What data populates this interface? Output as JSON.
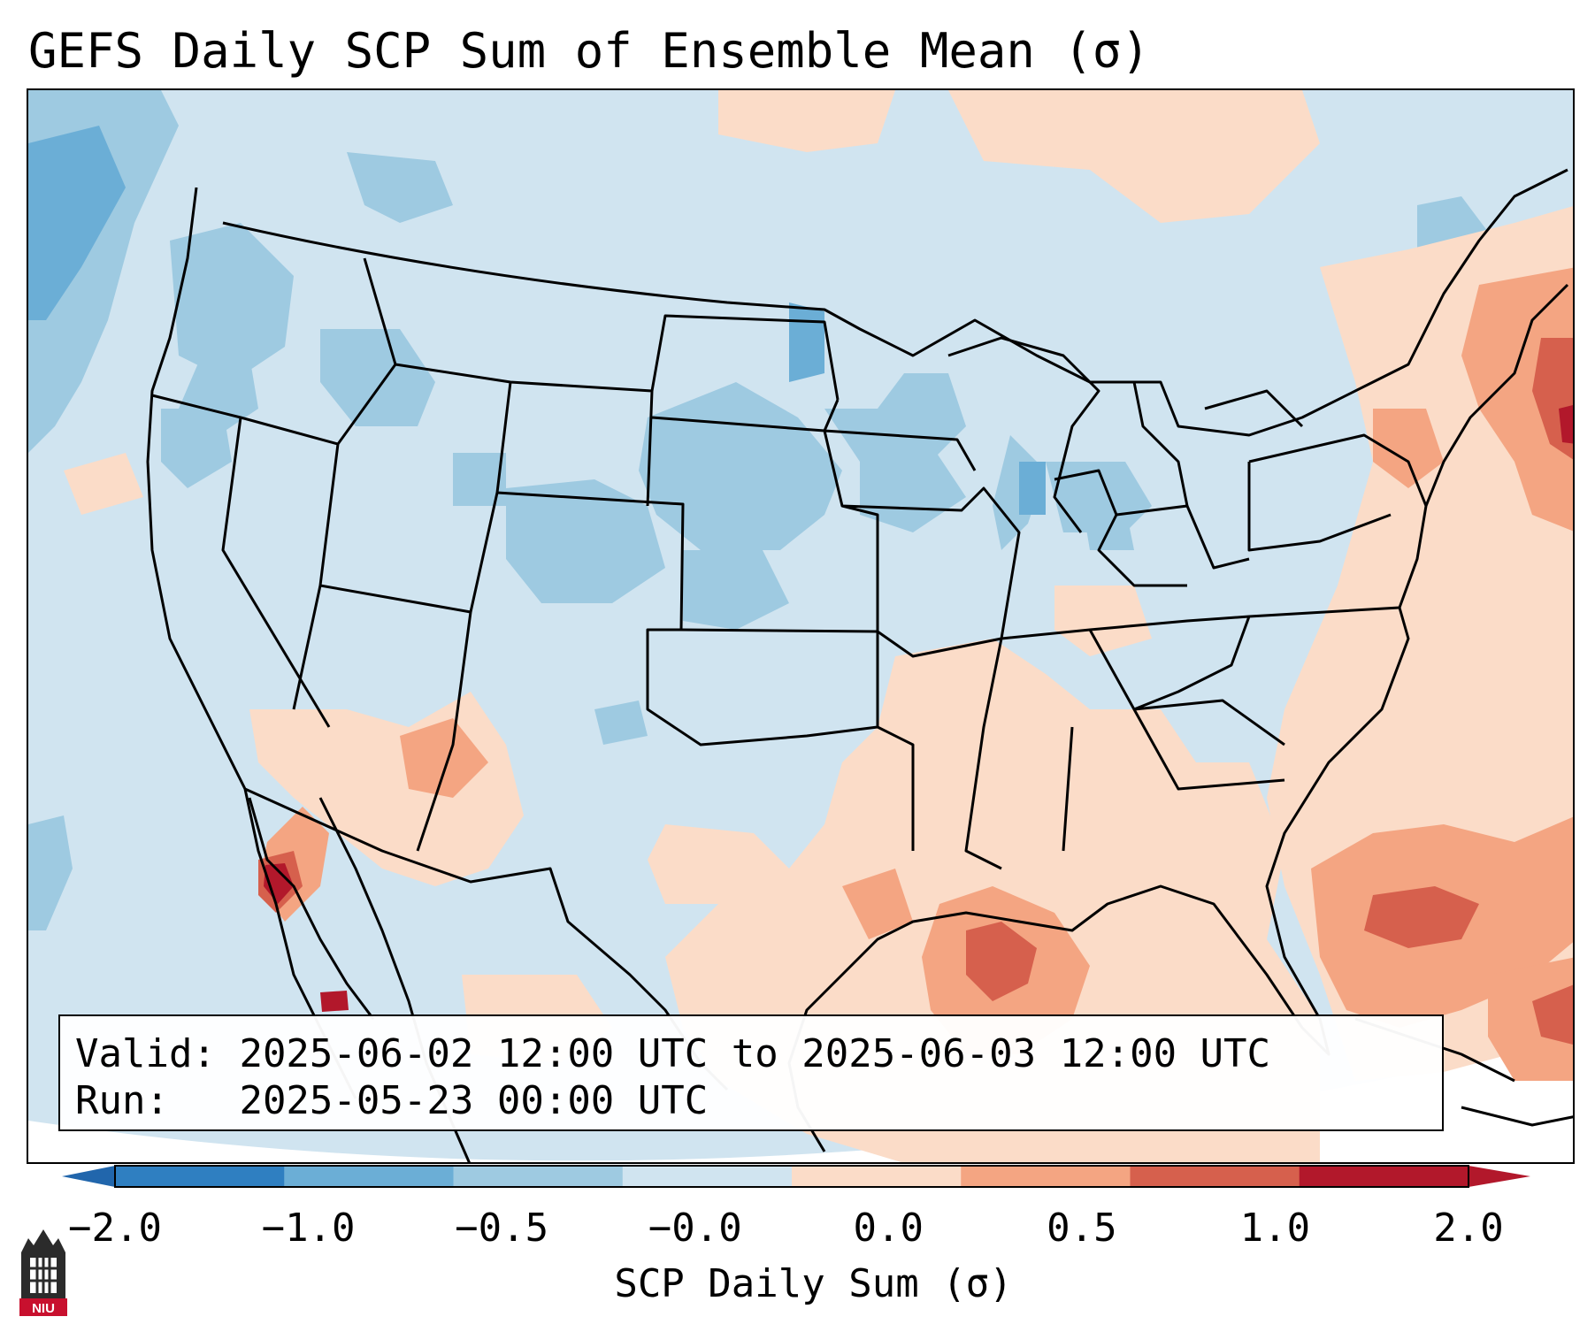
{
  "title": "GEFS Daily SCP Sum of Ensemble Mean (σ)",
  "info": {
    "valid_label": "Valid:",
    "valid_range": "2025-06-02 12:00 UTC to 2025-06-03 12:00 UTC",
    "run_label": "Run:",
    "run_time": "2025-05-23 00:00 UTC"
  },
  "colorbar": {
    "title": "SCP Daily Sum (σ)",
    "ticks": [
      "−2.0",
      "−1.0",
      "−0.5",
      "−0.0",
      "0.0",
      "0.5",
      "1.0",
      "2.0"
    ],
    "colors": [
      "#2f7fc1",
      "#6baed6",
      "#9ecae1",
      "#d0e4f0",
      "#fbdcc8",
      "#f4a582",
      "#d6604d",
      "#b2182b"
    ],
    "under_color": "#2166ac",
    "over_color": "#b2182b"
  },
  "field_colors": {
    "background": "#d0e4f0",
    "weak_negative": "#9ecae1",
    "moderate_negative": "#6baed6",
    "weak_positive": "#fbdcc8",
    "moderate_positive": "#f4a582",
    "strong_positive": "#d6604d",
    "extreme_positive": "#b2182b",
    "outside_domain": "#ffffff"
  },
  "logo": {
    "text": "NIU",
    "icon": "university-building-icon"
  }
}
